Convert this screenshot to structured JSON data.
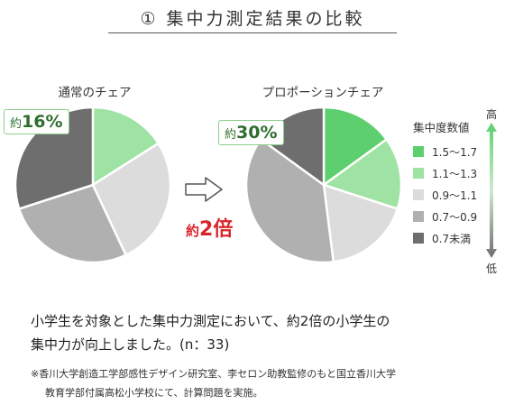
{
  "title": "① 集中力測定結果の比較",
  "description": [
    "小学生を対象とした集中力測定において、約2倍の小学生の",
    "集中力が向上しました。(n：33)"
  ],
  "note": [
    "※香川大学創造工学部感性デザイン研究室、李セロン助教監修のもと国立香川大学",
    "教育学部付属高松小学校にて、計算問題を実施。"
  ],
  "ratio": {
    "prefix": "約",
    "value": "2倍"
  },
  "legend": {
    "title": "集中度数値",
    "high_label": "高",
    "low_label": "低",
    "items": [
      {
        "label": "1.5〜1.7",
        "color": "#5ecf6e"
      },
      {
        "label": "1.1〜1.3",
        "color": "#9ee3a4"
      },
      {
        "label": "0.9〜1.1",
        "color": "#dcdcdc"
      },
      {
        "label": "0.7〜0.9",
        "color": "#b0b0b0"
      },
      {
        "label": "0.7未満",
        "color": "#6e6e6e"
      }
    ]
  },
  "chart_data": [
    {
      "type": "pie",
      "title": "通常のチェア",
      "callout": {
        "prefix": "約",
        "value": "16%"
      },
      "slices": [
        {
          "category": "1.5〜1.7",
          "value": 0
        },
        {
          "category": "1.1〜1.3",
          "value": 16
        },
        {
          "category": "0.9〜1.1",
          "value": 27
        },
        {
          "category": "0.7〜0.9",
          "value": 27
        },
        {
          "category": "0.7未満",
          "value": 30
        }
      ]
    },
    {
      "type": "pie",
      "title": "プロポーションチェア",
      "callout": {
        "prefix": "約",
        "value": "30%"
      },
      "slices": [
        {
          "category": "1.5〜1.7",
          "value": 15
        },
        {
          "category": "1.1〜1.3",
          "value": 15
        },
        {
          "category": "0.9〜1.1",
          "value": 18
        },
        {
          "category": "0.7〜0.9",
          "value": 37
        },
        {
          "category": "0.7未満",
          "value": 15
        }
      ]
    }
  ]
}
